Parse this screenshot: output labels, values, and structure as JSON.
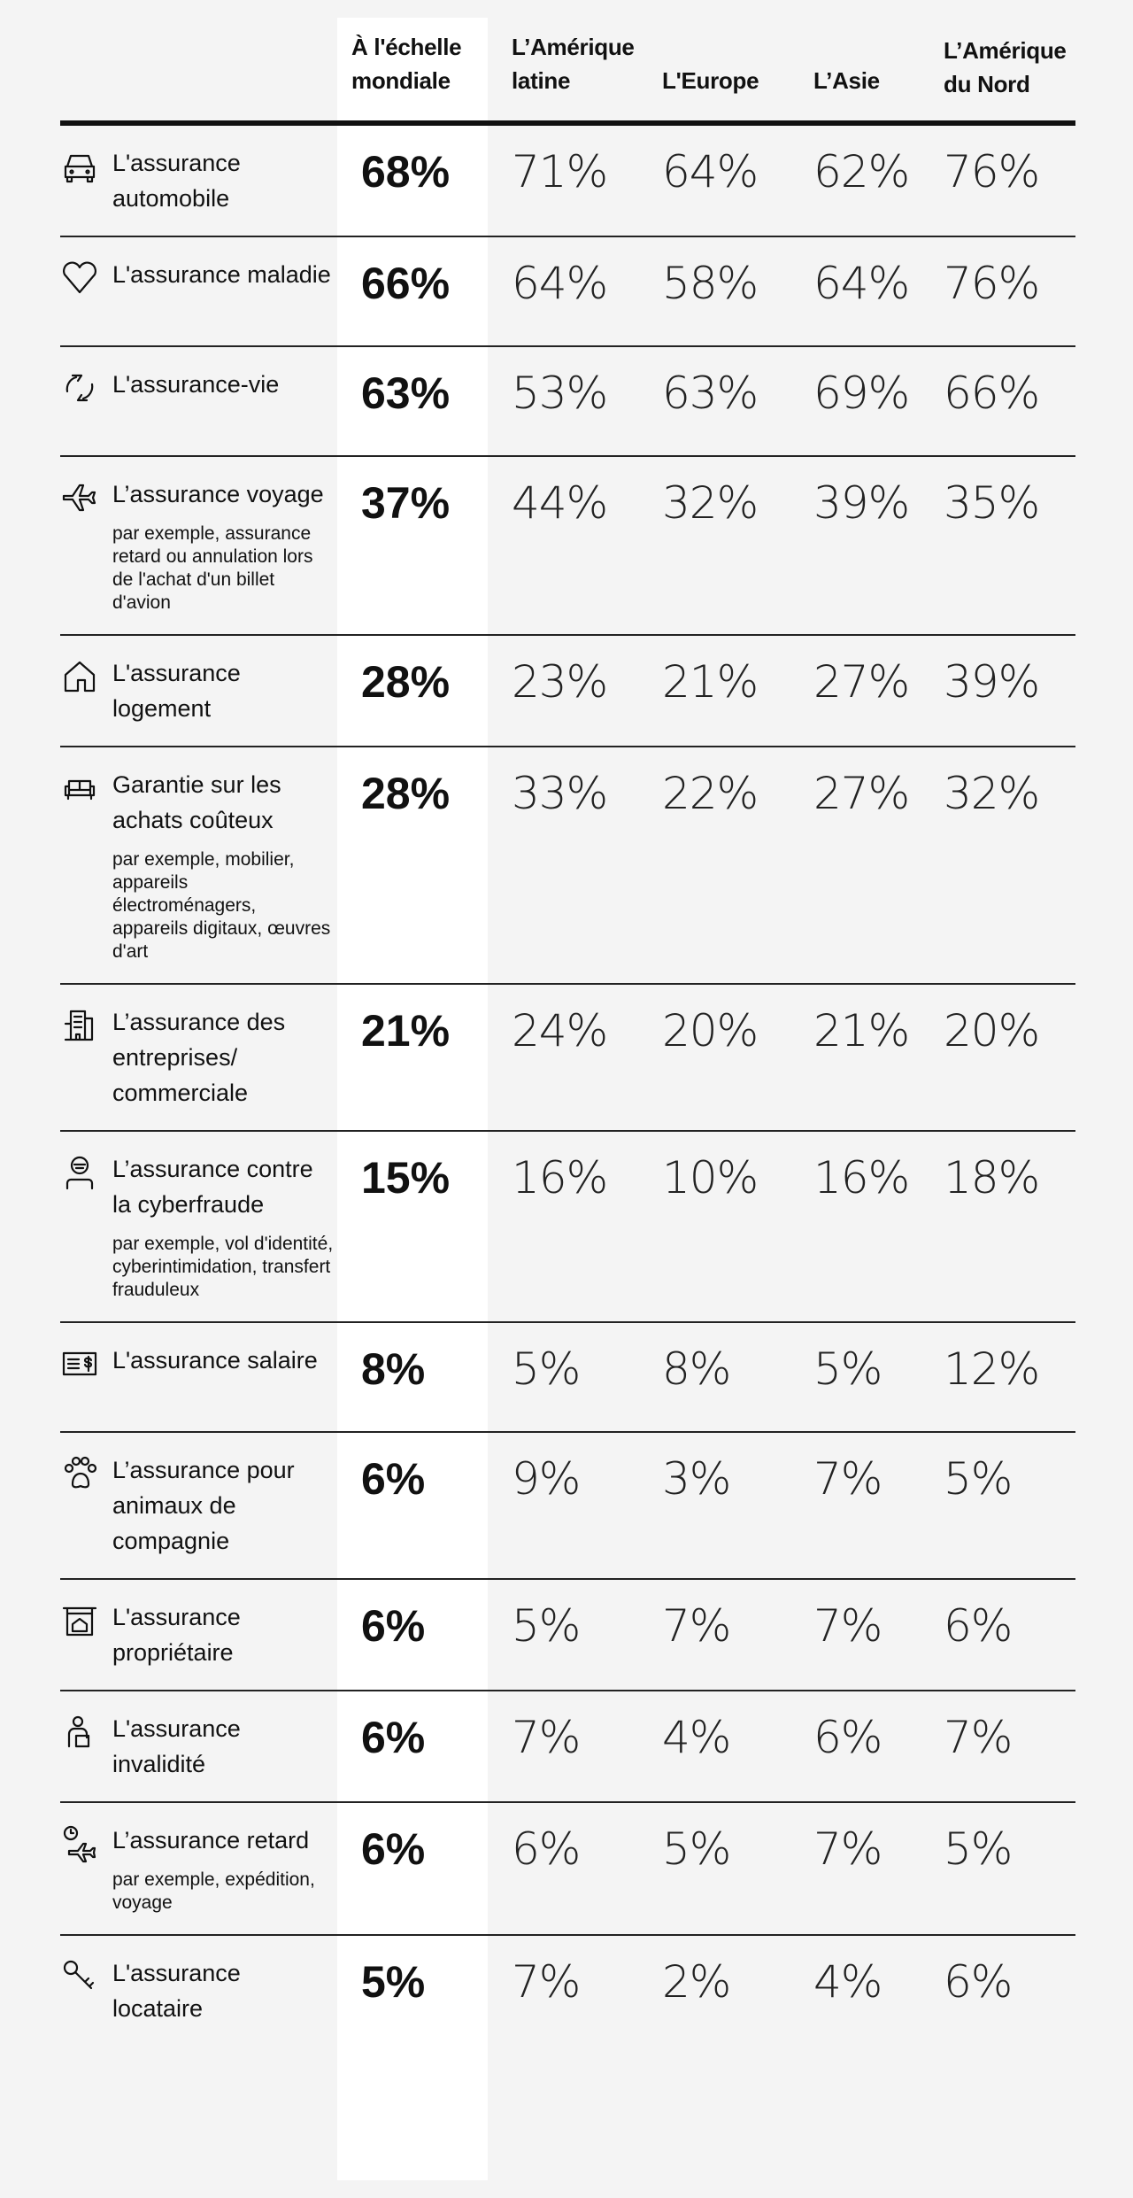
{
  "header": {
    "global": [
      "À l'échelle",
      "mondiale"
    ],
    "regions": [
      [
        "L’Amérique",
        "latine"
      ],
      [
        "L'Europe"
      ],
      [
        "L’Asie"
      ],
      [
        "L’Amérique",
        "du Nord"
      ]
    ]
  },
  "rows": [
    {
      "icon": "car-icon",
      "label": "L'assurance automobile",
      "sub": "",
      "global": "68%",
      "values": [
        "71%",
        "64%",
        "62%",
        "76%"
      ]
    },
    {
      "icon": "heart-icon",
      "label": "L'assurance maladie",
      "sub": "",
      "global": "66%",
      "values": [
        "64%",
        "58%",
        "64%",
        "76%"
      ]
    },
    {
      "icon": "hands-cycle-icon",
      "label": "L'assurance-vie",
      "sub": "",
      "global": "63%",
      "values": [
        "53%",
        "63%",
        "69%",
        "66%"
      ]
    },
    {
      "icon": "airplane-icon",
      "label": "L’assurance voyage",
      "sub": "par exemple, assurance retard ou annulation lors de l'achat d'un billet d'avion",
      "global": "37%",
      "values": [
        "44%",
        "32%",
        "39%",
        "35%"
      ]
    },
    {
      "icon": "house-icon",
      "label": "L'assurance logement",
      "sub": "",
      "global": "28%",
      "values": [
        "23%",
        "21%",
        "27%",
        "39%"
      ]
    },
    {
      "icon": "sofa-icon",
      "label": "Garantie sur les achats coûteux",
      "sub": "par exemple, mobilier, appareils électroménagers, appareils digitaux, œuvres d'art",
      "global": "28%",
      "values": [
        "33%",
        "22%",
        "27%",
        "32%"
      ]
    },
    {
      "icon": "building-icon",
      "label": "L’assurance des entreprises/ commerciale",
      "sub": "",
      "global": "21%",
      "values": [
        "24%",
        "20%",
        "21%",
        "20%"
      ]
    },
    {
      "icon": "hacker-icon",
      "label": "L’assurance contre la cyberfraude",
      "sub": "par exemple, vol d'identité, cyberintimidation, transfert frauduleux",
      "global": "15%",
      "values": [
        "16%",
        "10%",
        "16%",
        "18%"
      ]
    },
    {
      "icon": "paycheck-icon",
      "label": "L'assurance salaire",
      "sub": "",
      "global": "8%",
      "values": [
        "5%",
        "8%",
        "5%",
        "12%"
      ]
    },
    {
      "icon": "paw-icon",
      "label": "L’assurance pour animaux de compagnie",
      "sub": "",
      "global": "6%",
      "values": [
        "9%",
        "3%",
        "7%",
        "5%"
      ]
    },
    {
      "icon": "house-sign-icon",
      "label": "L'assurance propriétaire",
      "sub": "",
      "global": "6%",
      "values": [
        "5%",
        "7%",
        "7%",
        "6%"
      ]
    },
    {
      "icon": "disability-icon",
      "label": "L'assurance invalidité",
      "sub": "",
      "global": "6%",
      "values": [
        "7%",
        "4%",
        "6%",
        "7%"
      ]
    },
    {
      "icon": "delay-plane-icon",
      "label": "L’assurance retard",
      "sub": "par exemple, expédition, voyage",
      "global": "6%",
      "values": [
        "6%",
        "5%",
        "7%",
        "5%"
      ]
    },
    {
      "icon": "keys-icon",
      "label": "L'assurance locataire",
      "sub": "",
      "global": "5%",
      "values": [
        "7%",
        "2%",
        "4%",
        "6%"
      ]
    }
  ]
}
